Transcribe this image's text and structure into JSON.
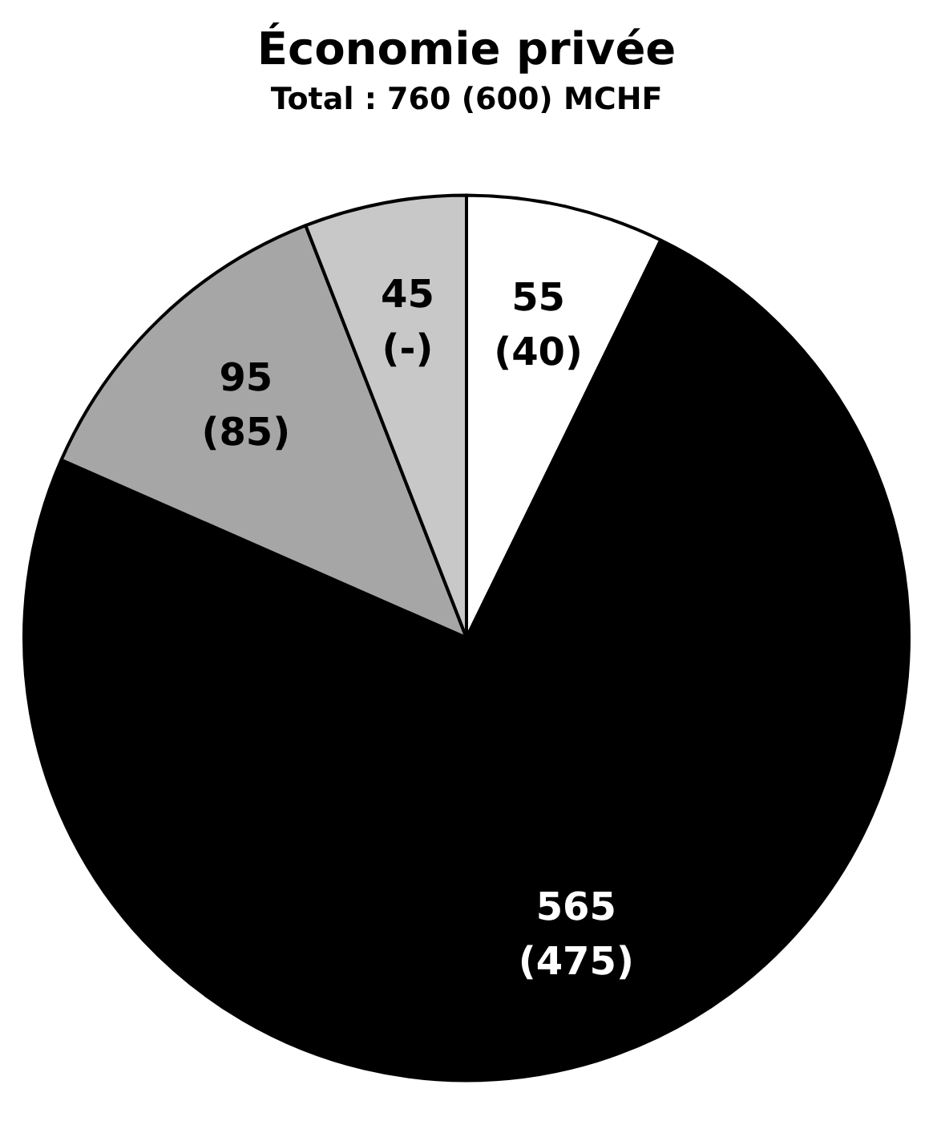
{
  "chart_data": {
    "type": "pie",
    "title": "Économie privée",
    "subtitle": "Total : 760 (600) MCHF",
    "categories": [
      null,
      null,
      null,
      null
    ],
    "values": [
      55,
      565,
      95,
      45
    ],
    "colors": [
      "#ffffff",
      "#000000",
      "#a6a6a6",
      "#c8c8c8"
    ],
    "value_labels": [
      "55\n(40)",
      "565\n(475)",
      "95\n(85)",
      "45\n(-)"
    ],
    "legend": false
  }
}
